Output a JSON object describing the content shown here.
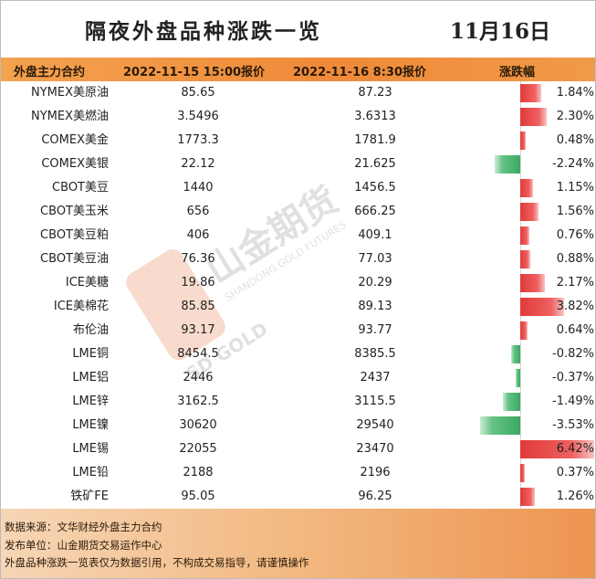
{
  "title": "隔夜外盘品种涨跌一览",
  "date": "11月16日",
  "header": {
    "name": "外盘主力合约",
    "col1": "2022-11-15 15:00报价",
    "col2": "2022-11-16 8:30报价",
    "change": "涨跌幅"
  },
  "watermark": {
    "brand": "山金期货",
    "sub": "SHANDONG GOLD FUTURES",
    "logo_text": "SD GOLD"
  },
  "colors": {
    "up": "#e53b3b",
    "down": "#3aa860",
    "accent": "#ef8a3a"
  },
  "chart_data": {
    "type": "table",
    "columns": [
      "外盘主力合约",
      "2022-11-15 15:00报价",
      "2022-11-16 8:30报价",
      "涨跌幅"
    ],
    "rows": [
      {
        "name": "NYMEX美原油",
        "v1": "85.65",
        "v2": "87.23",
        "pct": "1.84%",
        "value": 1.84
      },
      {
        "name": "NYMEX美燃油",
        "v1": "3.5496",
        "v2": "3.6313",
        "pct": "2.30%",
        "value": 2.3
      },
      {
        "name": "COMEX美金",
        "v1": "1773.3",
        "v2": "1781.9",
        "pct": "0.48%",
        "value": 0.48
      },
      {
        "name": "COMEX美银",
        "v1": "22.12",
        "v2": "21.625",
        "pct": "-2.24%",
        "value": -2.24
      },
      {
        "name": "CBOT美豆",
        "v1": "1440",
        "v2": "1456.5",
        "pct": "1.15%",
        "value": 1.15
      },
      {
        "name": "CBOT美玉米",
        "v1": "656",
        "v2": "666.25",
        "pct": "1.56%",
        "value": 1.56
      },
      {
        "name": "CBOT美豆粕",
        "v1": "406",
        "v2": "409.1",
        "pct": "0.76%",
        "value": 0.76
      },
      {
        "name": "CBOT美豆油",
        "v1": "76.36",
        "v2": "77.03",
        "pct": "0.88%",
        "value": 0.88
      },
      {
        "name": "ICE美糖",
        "v1": "19.86",
        "v2": "20.29",
        "pct": "2.17%",
        "value": 2.17
      },
      {
        "name": "ICE美棉花",
        "v1": "85.85",
        "v2": "89.13",
        "pct": "3.82%",
        "value": 3.82
      },
      {
        "name": "布伦油",
        "v1": "93.17",
        "v2": "93.77",
        "pct": "0.64%",
        "value": 0.64
      },
      {
        "name": "LME铜",
        "v1": "8454.5",
        "v2": "8385.5",
        "pct": "-0.82%",
        "value": -0.82
      },
      {
        "name": "LME铝",
        "v1": "2446",
        "v2": "2437",
        "pct": "-0.37%",
        "value": -0.37
      },
      {
        "name": "LME锌",
        "v1": "3162.5",
        "v2": "3115.5",
        "pct": "-1.49%",
        "value": -1.49
      },
      {
        "name": "LME镍",
        "v1": "30620",
        "v2": "29540",
        "pct": "-3.53%",
        "value": -3.53
      },
      {
        "name": "LME锡",
        "v1": "22055",
        "v2": "23470",
        "pct": "6.42%",
        "value": 6.42
      },
      {
        "name": "LME铅",
        "v1": "2188",
        "v2": "2196",
        "pct": "0.37%",
        "value": 0.37
      },
      {
        "name": "铁矿FE",
        "v1": "95.05",
        "v2": "96.25",
        "pct": "1.26%",
        "value": 1.26
      }
    ]
  },
  "footer": {
    "line1": "数据来源：文华财经外盘主力合约",
    "line2": "发布单位：山金期货交易运作中心",
    "line3": "外盘品种涨跌一览表仅为数据引用，不构成交易指导，请谨慎操作"
  }
}
